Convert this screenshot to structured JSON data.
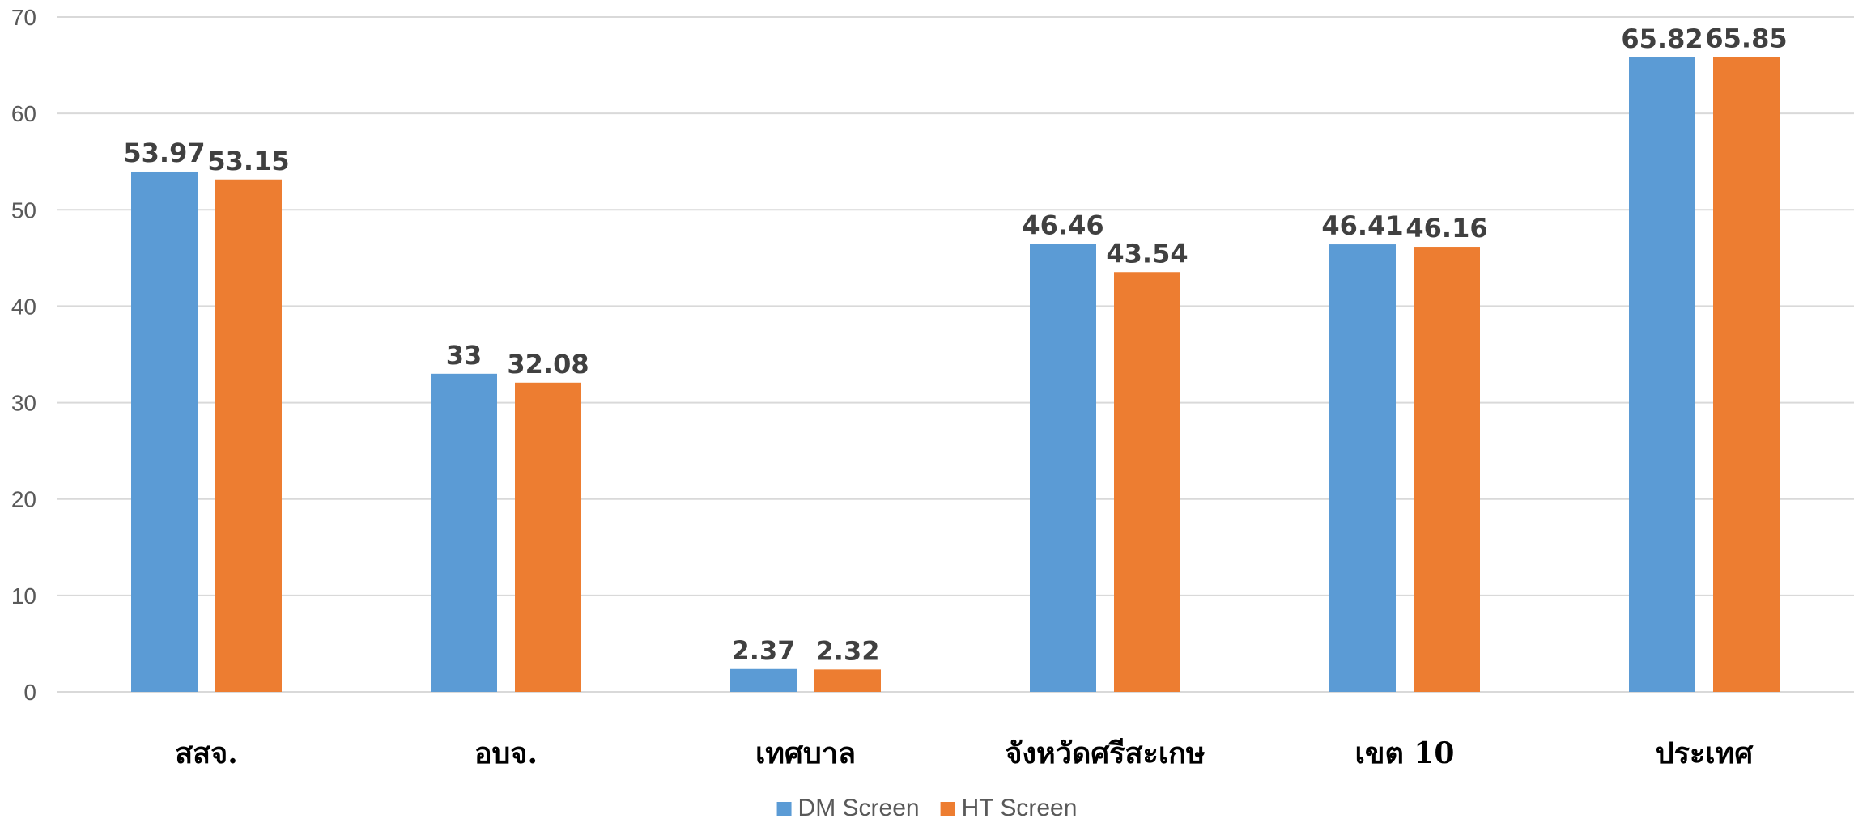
{
  "chart_data": {
    "type": "bar",
    "title": "",
    "xlabel": "",
    "ylabel": "",
    "categories": [
      "สสจ.",
      "อบจ.",
      "เทศบาล",
      "จังหวัดศรีสะเกษ",
      "เขต 10",
      "ประเทศ"
    ],
    "series": [
      {
        "name": "DM Screen",
        "color": "#5b9bd5",
        "values": [
          53.97,
          33,
          2.37,
          46.46,
          46.41,
          65.82
        ]
      },
      {
        "name": "HT Screen",
        "color": "#ed7d31",
        "values": [
          53.15,
          32.08,
          2.32,
          43.54,
          46.16,
          65.85
        ]
      }
    ],
    "ylim": [
      0,
      70
    ],
    "yticks": [
      0,
      10,
      20,
      30,
      40,
      50,
      60,
      70
    ],
    "grid": true,
    "legend": "bottom-center",
    "data_labels": true
  }
}
